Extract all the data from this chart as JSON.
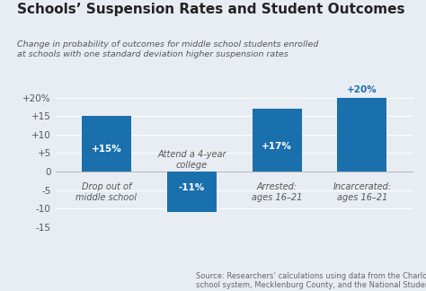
{
  "title": "Schools’ Suspension Rates and Student Outcomes",
  "subtitle": "Change in probability of outcomes for middle school students enrolled\nat schools with one standard deviation higher suspension rates",
  "categories": [
    "Drop out of\nmiddle school",
    "Attend a 4-year\ncollege",
    "Arrested:\nages 16–21",
    "Incarcerated:\nages 16–21"
  ],
  "values": [
    15,
    -11,
    17,
    20
  ],
  "bar_labels": [
    "+15%",
    "-11%",
    "+17%",
    "+20%"
  ],
  "bar_color": "#1a6fad",
  "background_color": "#e8edf3",
  "ylim": [
    -15,
    22
  ],
  "yticks": [
    -15,
    -10,
    -5,
    0,
    5,
    10,
    15,
    20
  ],
  "ytick_labels": [
    "-15",
    "-10",
    "-5",
    "0",
    "+5",
    "+10",
    "+15",
    "+20%"
  ],
  "source_text": "Source: Researchers’ calculations using data from the Charlotte-Mecklenburg\nschool system, Mecklenburg County, and the National Student Clearinghouse",
  "title_fontsize": 11,
  "subtitle_fontsize": 6.8,
  "bar_label_fontsize": 7.5,
  "category_fontsize": 7.0,
  "source_fontsize": 6.0,
  "ytick_fontsize": 7.5
}
